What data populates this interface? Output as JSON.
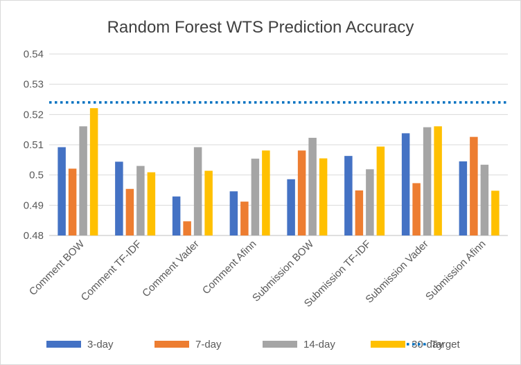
{
  "chart_data": {
    "type": "bar",
    "title": "Random Forest WTS Prediction Accuracy",
    "xlabel": "",
    "ylabel": "",
    "ylim": [
      0.48,
      0.54
    ],
    "yticks": [
      "0.48",
      "0.49",
      "0.5",
      "0.51",
      "0.52",
      "0.53",
      "0.54"
    ],
    "grid": true,
    "legend_position": "bottom",
    "categories": [
      "Comment BOW",
      "Comment TF-IDF",
      "Comment Vader",
      "Comment Afinn",
      "Submission BOW",
      "Submission TF-IDF",
      "Submission Vader",
      "Submission Afinn"
    ],
    "series": [
      {
        "name": "3-day",
        "color": "#4472c4",
        "values": [
          0.5092,
          0.5044,
          0.4929,
          0.4946,
          0.4986,
          0.5063,
          0.5138,
          0.5045
        ]
      },
      {
        "name": "7-day",
        "color": "#ed7d31",
        "values": [
          0.5021,
          0.4954,
          0.4847,
          0.4912,
          0.5081,
          0.4949,
          0.4973,
          0.5126
        ]
      },
      {
        "name": "14-day",
        "color": "#a5a5a5",
        "values": [
          0.5161,
          0.503,
          0.5092,
          0.5054,
          0.5123,
          0.5019,
          0.5158,
          0.5034
        ]
      },
      {
        "name": "30-day",
        "color": "#ffc000",
        "values": [
          0.5221,
          0.5009,
          0.5014,
          0.5081,
          0.5055,
          0.5094,
          0.5161,
          0.4948
        ]
      }
    ],
    "reference_line": {
      "name": "Target",
      "value": 0.524,
      "color": "#0070c0"
    }
  }
}
